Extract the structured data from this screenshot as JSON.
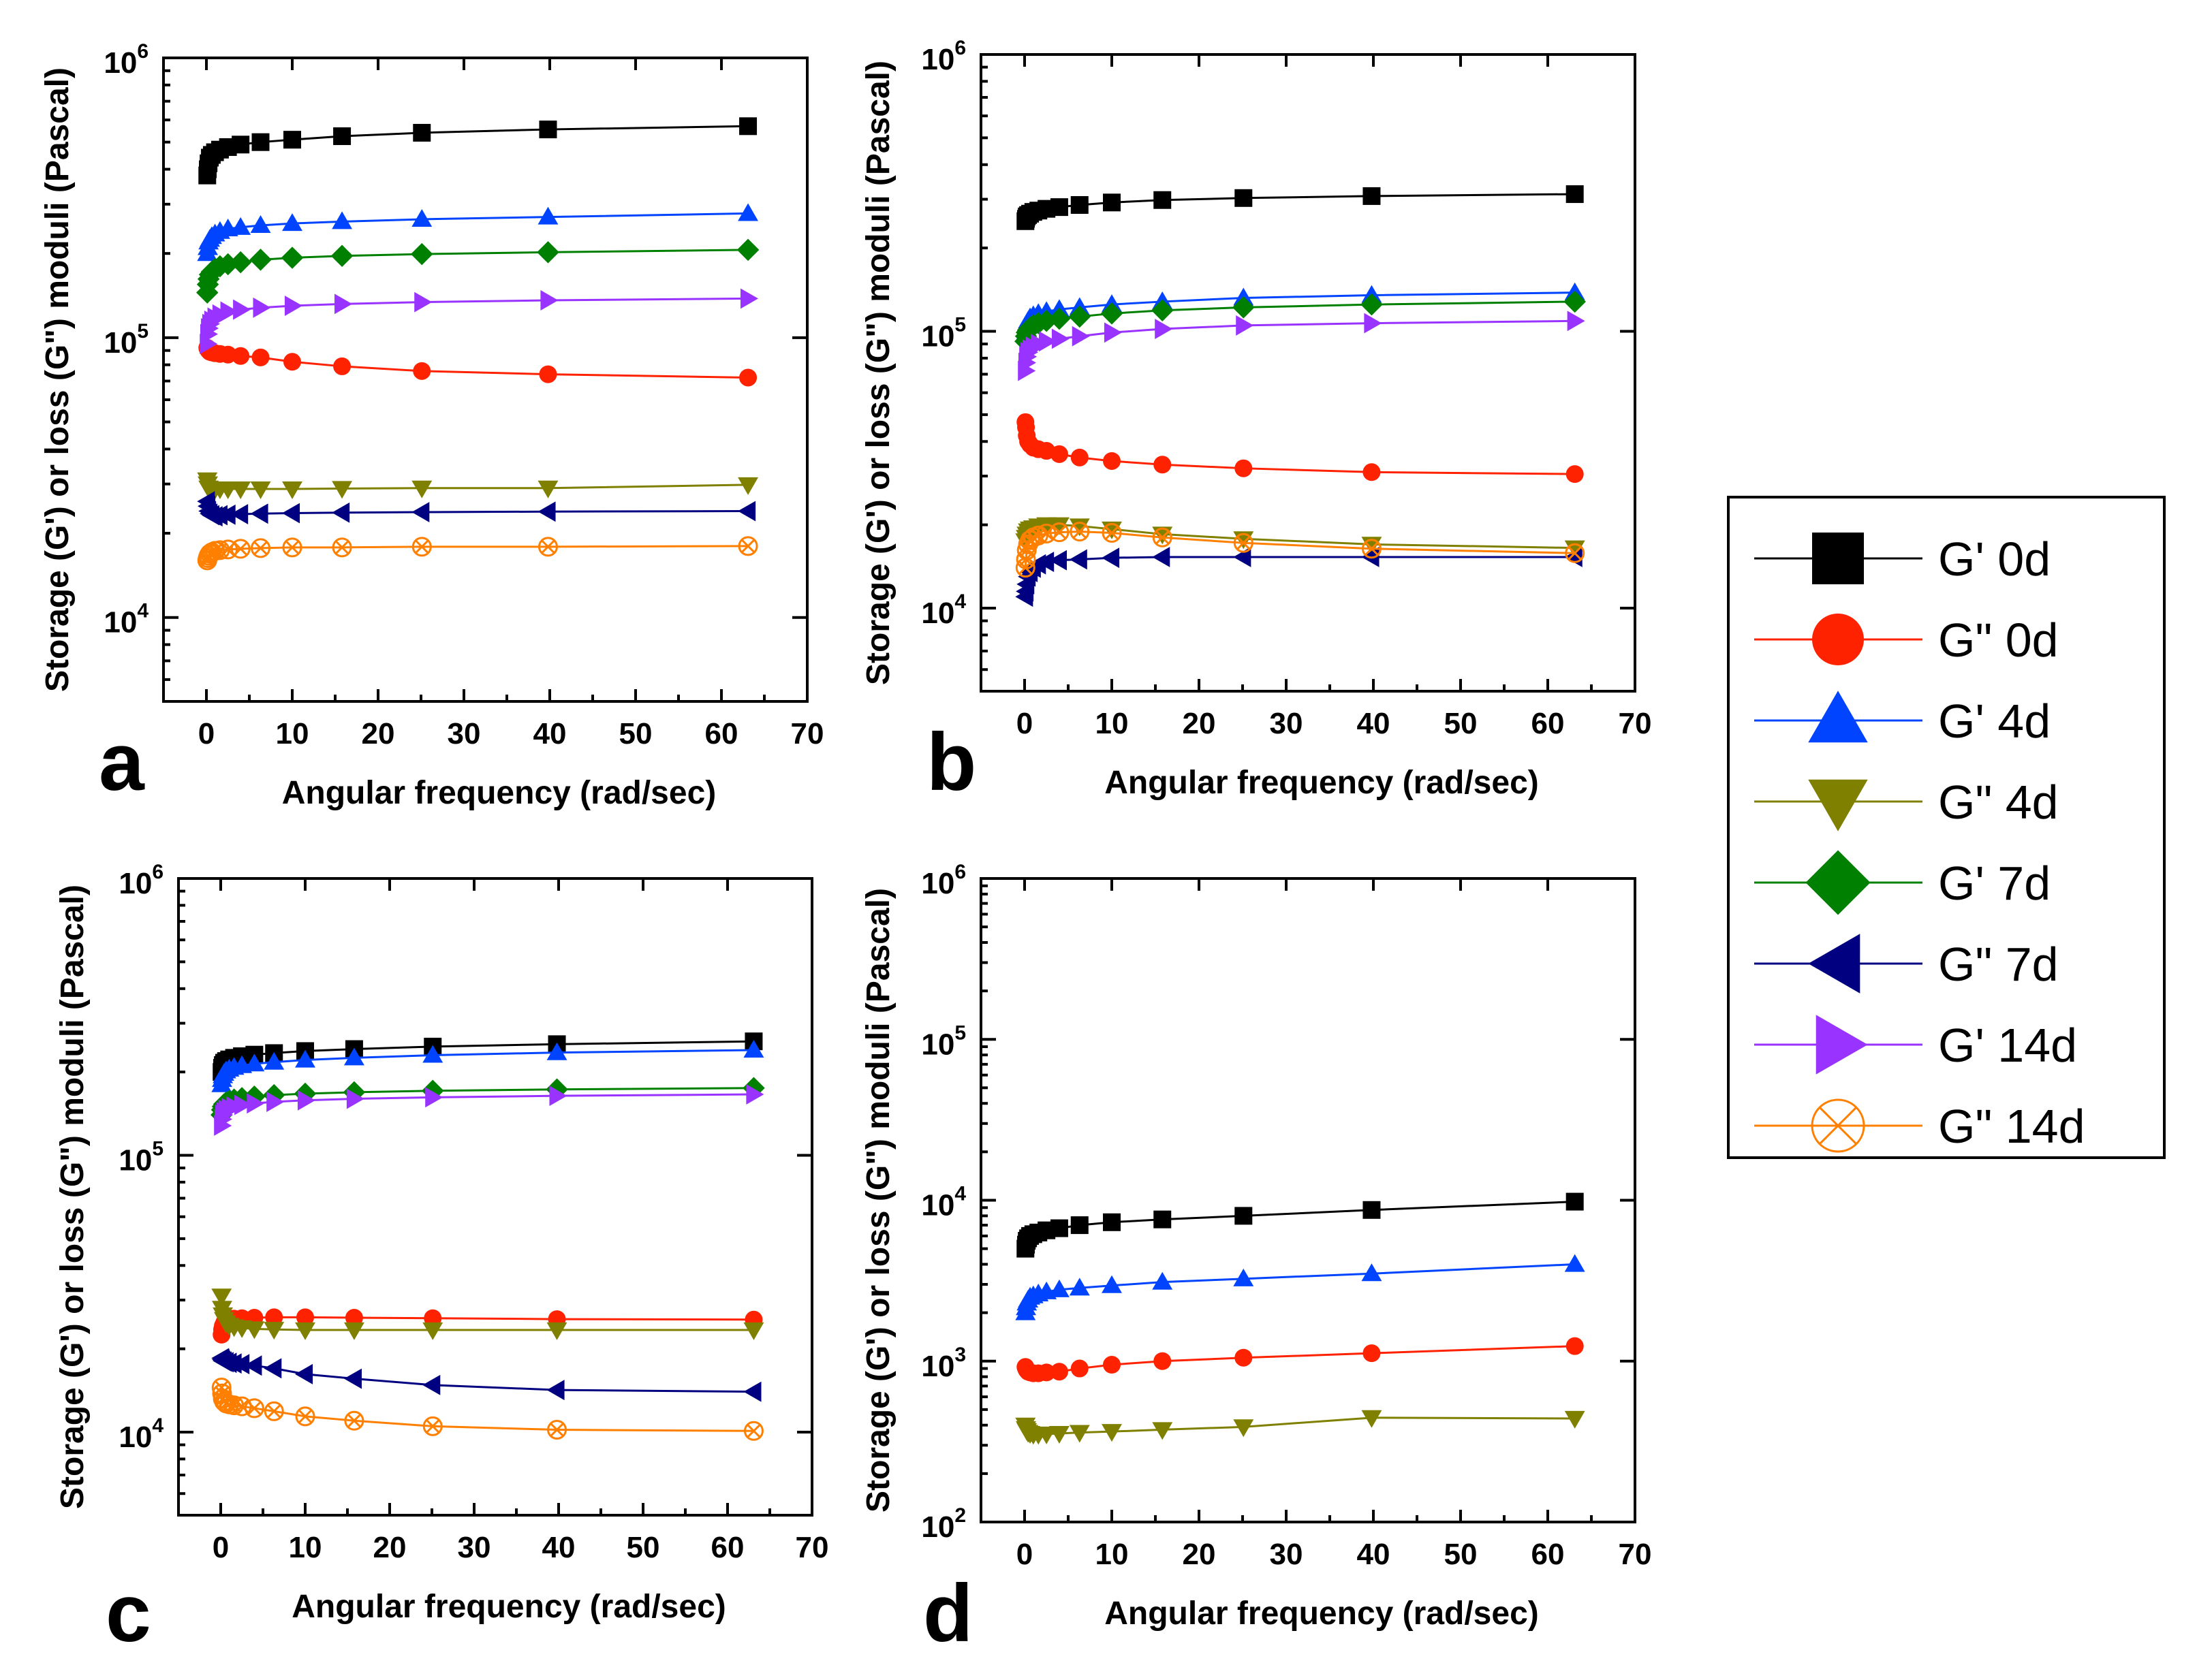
{
  "legend": [
    {
      "key": "gp0",
      "label": "G' 0d",
      "color": "#000000",
      "marker": "square"
    },
    {
      "key": "gpp0",
      "label": "G\" 0d",
      "color": "#ff2200",
      "marker": "circle"
    },
    {
      "key": "gp4",
      "label": "G' 4d",
      "color": "#0044ff",
      "marker": "triangle-up"
    },
    {
      "key": "gpp4",
      "label": "G\" 4d",
      "color": "#808000",
      "marker": "triangle-down"
    },
    {
      "key": "gp7",
      "label": "G' 7d",
      "color": "#008000",
      "marker": "diamond"
    },
    {
      "key": "gpp7",
      "label": "G\" 7d",
      "color": "#000080",
      "marker": "triangle-left"
    },
    {
      "key": "gp14",
      "label": "G' 14d",
      "color": "#9933ff",
      "marker": "triangle-right"
    },
    {
      "key": "gpp14",
      "label": "G\" 14d",
      "color": "#ff8000",
      "marker": "circle-x"
    }
  ],
  "chart_data": [
    {
      "panel": "a",
      "type": "scatter",
      "xlabel": "Angular frequency (rad/sec)",
      "ylabel": "Storage (G') or loss (G\") moduli (Pascal)",
      "xlim": [
        -5,
        70
      ],
      "xticks": [
        0,
        10,
        20,
        30,
        40,
        50,
        60,
        70
      ],
      "ylim_exp": [
        3.7,
        6.0
      ],
      "yticks_exp": [
        4,
        5,
        6
      ],
      "x": [
        0.1,
        0.16,
        0.25,
        0.4,
        0.63,
        1.0,
        1.58,
        2.51,
        3.98,
        6.31,
        10,
        15.8,
        25.1,
        39.8,
        63.1
      ],
      "series": [
        {
          "key": "gp0",
          "values": [
            380000,
            400000,
            420000,
            440000,
            450000,
            460000,
            470000,
            480000,
            490000,
            500000,
            510000,
            525000,
            540000,
            555000,
            570000
          ]
        },
        {
          "key": "gpp0",
          "values": [
            92000,
            91000,
            90000,
            89000,
            88500,
            88000,
            87500,
            87000,
            86000,
            85000,
            82000,
            79000,
            76000,
            74000,
            72000
          ]
        },
        {
          "key": "gp4",
          "values": [
            200000,
            210000,
            220000,
            225000,
            230000,
            235000,
            240000,
            245000,
            248000,
            252000,
            256000,
            260000,
            265000,
            270000,
            278000
          ]
        },
        {
          "key": "gpp4",
          "values": [
            31000,
            30000,
            29000,
            28800,
            28700,
            28700,
            28800,
            28800,
            28800,
            28800,
            28800,
            28900,
            29000,
            29000,
            29800
          ]
        },
        {
          "key": "gp7",
          "values": [
            145000,
            155000,
            162000,
            168000,
            172000,
            176000,
            180000,
            183000,
            186000,
            190000,
            193000,
            196000,
            199000,
            202000,
            206000
          ]
        },
        {
          "key": "gpp7",
          "values": [
            26000,
            25000,
            24000,
            23500,
            23200,
            23000,
            23200,
            23300,
            23400,
            23500,
            23600,
            23700,
            23800,
            23900,
            24000
          ]
        },
        {
          "key": "gp14",
          "values": [
            95000,
            103000,
            108000,
            112000,
            115000,
            118000,
            121000,
            124000,
            126000,
            128000,
            130000,
            132000,
            134000,
            136000,
            138000
          ]
        },
        {
          "key": "gpp14",
          "values": [
            16000,
            16300,
            16600,
            16900,
            17100,
            17300,
            17400,
            17500,
            17600,
            17700,
            17800,
            17800,
            17900,
            17900,
            18000
          ]
        }
      ]
    },
    {
      "panel": "b",
      "type": "scatter",
      "xlabel": "Angular frequency (rad/sec)",
      "ylabel": "Storage (G') or loss (G\") moduli (Pascal)",
      "xlim": [
        -5,
        70
      ],
      "xticks": [
        0,
        10,
        20,
        30,
        40,
        50,
        60,
        70
      ],
      "ylim_exp": [
        3.7,
        6.0
      ],
      "yticks_exp": [
        4,
        5,
        6
      ],
      "x": [
        0.1,
        0.16,
        0.25,
        0.4,
        0.63,
        1.0,
        1.58,
        2.51,
        3.98,
        6.31,
        10,
        15.8,
        25.1,
        39.8,
        63.1
      ],
      "series": [
        {
          "key": "gp0",
          "values": [
            250000,
            255000,
            260000,
            263000,
            266000,
            270000,
            273000,
            277000,
            281000,
            286000,
            292000,
            298000,
            303000,
            308000,
            313000
          ]
        },
        {
          "key": "gpp0",
          "values": [
            47000,
            45000,
            42000,
            40000,
            39000,
            38000,
            37500,
            37000,
            36000,
            35000,
            34000,
            33000,
            32000,
            31000,
            30500
          ]
        },
        {
          "key": "gp4",
          "values": [
            98000,
            102000,
            106000,
            109000,
            112000,
            114000,
            116000,
            118000,
            120000,
            122000,
            125000,
            128000,
            132000,
            135000,
            138000
          ]
        },
        {
          "key": "gpp4",
          "values": [
            17500,
            18000,
            18500,
            19000,
            19300,
            19500,
            19800,
            20000,
            20000,
            19800,
            19300,
            18500,
            17800,
            17000,
            16500
          ]
        },
        {
          "key": "gp7",
          "values": [
            92000,
            96000,
            99000,
            101000,
            103000,
            105000,
            107000,
            109000,
            111000,
            113000,
            116000,
            119000,
            122000,
            125000,
            128000
          ]
        },
        {
          "key": "gpp7",
          "values": [
            11000,
            11500,
            12200,
            13000,
            13500,
            14000,
            14400,
            14700,
            14900,
            15000,
            15200,
            15300,
            15300,
            15300,
            15300
          ]
        },
        {
          "key": "gp14",
          "values": [
            72000,
            77000,
            81000,
            84000,
            86000,
            88000,
            90000,
            92000,
            94000,
            96000,
            99000,
            102000,
            105000,
            107000,
            109000
          ]
        },
        {
          "key": "gpp14",
          "values": [
            14000,
            15000,
            16200,
            17000,
            17600,
            18000,
            18300,
            18600,
            18800,
            18900,
            18700,
            18000,
            17200,
            16400,
            15800
          ]
        }
      ]
    },
    {
      "panel": "c",
      "type": "scatter",
      "xlabel": "Angular frequency (rad/sec)",
      "ylabel": "Storage (G') or loss (G\") moduli (Pascal)",
      "xlim": [
        -5,
        70
      ],
      "xticks": [
        0,
        10,
        20,
        30,
        40,
        50,
        60,
        70
      ],
      "ylim_exp": [
        3.7,
        6.0
      ],
      "yticks_exp": [
        4,
        5,
        6
      ],
      "x": [
        0.1,
        0.16,
        0.25,
        0.4,
        0.63,
        1.0,
        1.58,
        2.51,
        3.98,
        6.31,
        10,
        15.8,
        25.1,
        39.8,
        63.1
      ],
      "series": [
        {
          "key": "gp0",
          "values": [
            200000,
            207000,
            212000,
            216000,
            219000,
            222000,
            225000,
            228000,
            231000,
            234000,
            238000,
            242000,
            247000,
            252000,
            258000
          ]
        },
        {
          "key": "gpp0",
          "values": [
            22500,
            23500,
            24200,
            24800,
            25200,
            25500,
            25700,
            25800,
            25900,
            26000,
            26000,
            25900,
            25800,
            25600,
            25500
          ]
        },
        {
          "key": "gp4",
          "values": [
            180000,
            188000,
            194000,
            198000,
            202000,
            205000,
            208000,
            211000,
            214000,
            217000,
            221000,
            225000,
            230000,
            235000,
            240000
          ]
        },
        {
          "key": "gpp4",
          "values": [
            31000,
            28000,
            26500,
            25500,
            24800,
            24300,
            24000,
            23800,
            23600,
            23500,
            23400,
            23400,
            23400,
            23400,
            23400
          ]
        },
        {
          "key": "gp7",
          "values": [
            140000,
            146000,
            150000,
            153000,
            155000,
            157000,
            159000,
            161000,
            163000,
            165000,
            167000,
            169000,
            171000,
            173000,
            175000
          ]
        },
        {
          "key": "gpp7",
          "values": [
            18500,
            18300,
            18100,
            18000,
            17900,
            17800,
            17700,
            17600,
            17400,
            17000,
            16200,
            15600,
            14800,
            14200,
            14000
          ]
        },
        {
          "key": "gp14",
          "values": [
            128000,
            135000,
            140000,
            143000,
            146000,
            148000,
            150000,
            152000,
            154000,
            156000,
            158000,
            160000,
            162000,
            164000,
            166000
          ]
        },
        {
          "key": "gpp14",
          "values": [
            14500,
            13800,
            13200,
            12900,
            12700,
            12600,
            12500,
            12400,
            12200,
            11900,
            11400,
            11000,
            10500,
            10200,
            10100
          ]
        }
      ]
    },
    {
      "panel": "d",
      "type": "scatter",
      "xlabel": "Angular frequency (rad/sec)",
      "ylabel": "Storage (G') or loss (G\") moduli (Pascal)",
      "xlim": [
        -5,
        70
      ],
      "xticks": [
        0,
        10,
        20,
        30,
        40,
        50,
        60,
        70
      ],
      "ylim_exp": [
        2.0,
        6.0
      ],
      "yticks_exp": [
        2,
        3,
        4,
        5,
        6
      ],
      "x": [
        0.1,
        0.16,
        0.25,
        0.4,
        0.63,
        1.0,
        1.58,
        2.51,
        3.98,
        6.31,
        10,
        15.8,
        25.1,
        39.8,
        63.1
      ],
      "series": [
        {
          "key": "gp0",
          "values": [
            5000,
            5300,
            5600,
            5800,
            6000,
            6150,
            6300,
            6500,
            6700,
            7000,
            7300,
            7600,
            8000,
            8700,
            9800
          ]
        },
        {
          "key": "gpp0",
          "values": [
            920,
            900,
            880,
            860,
            850,
            840,
            840,
            850,
            860,
            900,
            950,
            1000,
            1050,
            1120,
            1240
          ]
        },
        {
          "key": "gp4",
          "values": [
            2000,
            2150,
            2300,
            2400,
            2500,
            2550,
            2620,
            2700,
            2780,
            2850,
            2950,
            3100,
            3250,
            3500,
            4000
          ]
        },
        {
          "key": "gpp4",
          "values": [
            400,
            380,
            370,
            360,
            355,
            350,
            350,
            352,
            355,
            360,
            365,
            375,
            390,
            445,
            440
          ]
        }
      ]
    }
  ],
  "panel_letters": [
    "a",
    "b",
    "c",
    "d"
  ]
}
